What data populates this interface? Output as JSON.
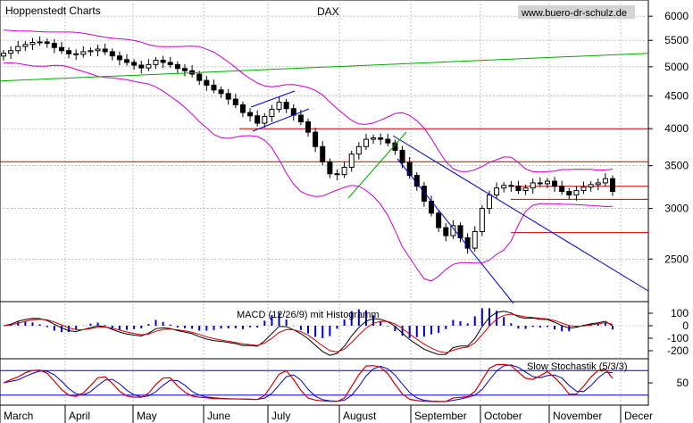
{
  "header": {
    "source": "Hoppenstedt Charts",
    "title": "DAX",
    "watermark": "www.buero-dr-schulz.de"
  },
  "chart_data": [
    {
      "type": "line",
      "subtype": "candlestick",
      "title": "DAX",
      "x_labels": [
        "March",
        "April",
        "May",
        "June",
        "July",
        "August",
        "September",
        "October",
        "November",
        "Decer"
      ],
      "y_ticks": [
        2500,
        3000,
        3500,
        4000,
        4500,
        5000,
        5500,
        6000
      ],
      "y_scale": "log",
      "ylim": [
        2200,
        6200
      ],
      "series": [
        {
          "kind": "close",
          "values": [
            5250,
            5300,
            5380,
            5420,
            5460,
            5470,
            5440,
            5360,
            5300,
            5240,
            5230,
            5280,
            5300,
            5330,
            5280,
            5200,
            5130,
            5080,
            5030,
            4980,
            5040,
            5120,
            5080,
            5040,
            4970,
            4930,
            4870,
            4760,
            4680,
            4600,
            4540,
            4450,
            4360,
            4240,
            4190,
            4080,
            4180,
            4290,
            4400,
            4300,
            4200,
            4100,
            3950,
            3750,
            3550,
            3400,
            3390,
            3480,
            3650,
            3750,
            3850,
            3870,
            3850,
            3800,
            3700,
            3540,
            3380,
            3250,
            3080,
            2950,
            2800,
            2720,
            2820,
            2700,
            2600,
            2760,
            3000,
            3150,
            3230,
            3260,
            3250,
            3200,
            3230,
            3290,
            3280,
            3310,
            3250,
            3190,
            3150,
            3200,
            3240,
            3270,
            3290,
            3340,
            3190
          ]
        },
        {
          "name": "Bollinger upper",
          "color": "#cc00cc"
        },
        {
          "name": "Bollinger lower",
          "color": "#cc00cc"
        },
        {
          "name": "long-term trendline",
          "color": "#00aa00",
          "points": [
            [
              "start",
              4750
            ],
            [
              "end",
              5250
            ]
          ]
        }
      ],
      "horizontal_levels": [
        {
          "value": 4000,
          "color": "#cc0000"
        },
        {
          "value": 3550,
          "color": "#cc0000"
        },
        {
          "value": 3250,
          "color": "#cc0000"
        },
        {
          "value": 3100,
          "color": "#cc0000"
        },
        {
          "value": 2750,
          "color": "#cc0000"
        }
      ],
      "trendlines": [
        {
          "color": "#0000cc"
        },
        {
          "color": "#0000cc"
        },
        {
          "color": "#0000cc"
        },
        {
          "color": "#00aa00"
        }
      ],
      "grid": true,
      "colors": {
        "candle": "#000000",
        "bollinger": "#cc00cc",
        "support_resistance": "#cc0000",
        "trend": "#0000cc",
        "long_trend": "#00aa00",
        "grid": "#999999"
      }
    },
    {
      "type": "line",
      "title": "MACD (12/26/9) mit Histogramm",
      "y_ticks": [
        100,
        0,
        -100,
        -200
      ],
      "ylim": [
        -250,
        150
      ],
      "series": [
        {
          "name": "MACD",
          "color": "#000000"
        },
        {
          "name": "Signal",
          "color": "#cc0000"
        },
        {
          "name": "Histogramm",
          "color": "#0000cc"
        }
      ],
      "grid": true
    },
    {
      "type": "line",
      "title": "Slow Stochastik (5/3/3)",
      "y_ticks": [
        50
      ],
      "ylim": [
        0,
        100
      ],
      "reference_levels": [
        80,
        20
      ],
      "series": [
        {
          "name": "%K",
          "color": "#cc0000"
        },
        {
          "name": "%D",
          "color": "#0000cc"
        }
      ],
      "grid": true
    }
  ]
}
